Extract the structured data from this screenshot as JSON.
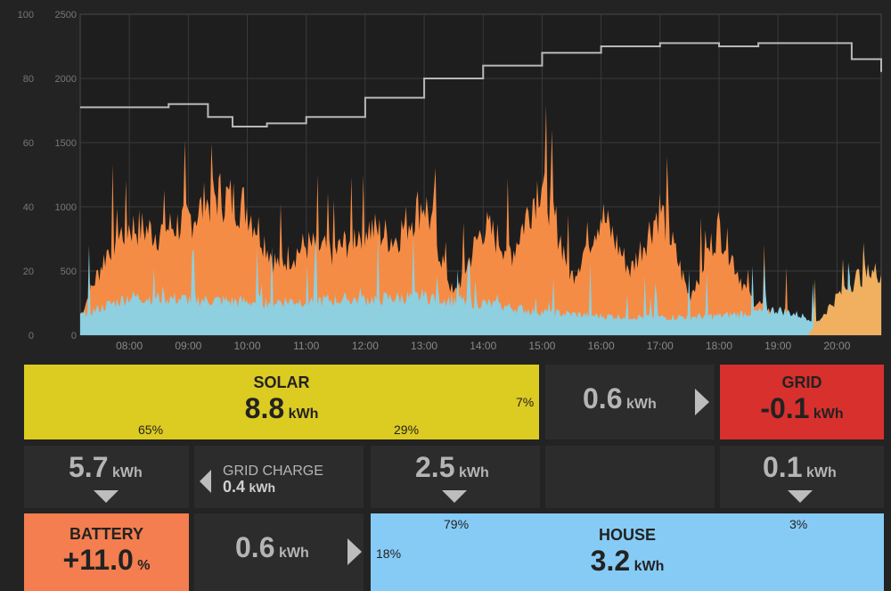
{
  "chart_data": {
    "type": "area",
    "x_ticks": [
      "08:00",
      "09:00",
      "10:00",
      "11:00",
      "12:00",
      "13:00",
      "14:00",
      "15:00",
      "16:00",
      "17:00",
      "18:00",
      "19:00",
      "20:00"
    ],
    "y_left_ticks": [
      "100",
      "80",
      "60",
      "40",
      "20",
      "0"
    ],
    "y_right_ticks": [
      "2500",
      "2000",
      "1500",
      "1000",
      "500",
      "0"
    ],
    "xlim": [
      "07:10",
      "20:45"
    ],
    "ylim_left": [
      0,
      100
    ],
    "ylim_right": [
      0,
      2500
    ],
    "colors": {
      "solar": "#f58c45",
      "house": "#8ecfe0",
      "battery_charge": "#f0b060",
      "line": "#b8b8b8",
      "grid": "#3a3a3a"
    },
    "series": [
      {
        "name": "solar",
        "times": [
          "07:10",
          "07:40",
          "08:00",
          "08:30",
          "09:00",
          "09:30",
          "10:00",
          "10:30",
          "11:00",
          "11:30",
          "12:00",
          "12:30",
          "13:00",
          "13:30",
          "14:00",
          "14:30",
          "15:00",
          "15:30",
          "16:00",
          "16:30",
          "17:00",
          "17:30",
          "18:00",
          "18:30",
          "19:00",
          "19:30",
          "20:00",
          "20:45"
        ],
        "values": [
          150,
          700,
          850,
          800,
          900,
          1100,
          1000,
          550,
          700,
          650,
          850,
          750,
          1050,
          300,
          850,
          650,
          1250,
          450,
          950,
          500,
          1000,
          300,
          850,
          300,
          150,
          50,
          0,
          0
        ]
      },
      {
        "name": "house",
        "times": [
          "07:10",
          "08:00",
          "09:00",
          "10:00",
          "11:00",
          "12:00",
          "13:00",
          "14:00",
          "15:00",
          "16:00",
          "17:00",
          "18:00",
          "19:00",
          "20:00",
          "20:45"
        ],
        "values": [
          150,
          300,
          280,
          260,
          270,
          280,
          300,
          250,
          180,
          150,
          140,
          150,
          200,
          80,
          60
        ]
      },
      {
        "name": "battery_charge",
        "times": [
          "19:30",
          "20:00",
          "20:20",
          "20:45"
        ],
        "values": [
          0,
          300,
          450,
          500
        ]
      },
      {
        "name": "battery_soc",
        "times": [
          "07:10",
          "08:05",
          "08:40",
          "09:20",
          "09:45",
          "10:20",
          "11:00",
          "12:00",
          "13:00",
          "14:00",
          "15:00",
          "16:00",
          "17:00",
          "18:00",
          "18:40",
          "19:30",
          "20:15",
          "20:45"
        ],
        "values": [
          71,
          71,
          72,
          68,
          65,
          66,
          68,
          74,
          80,
          84,
          88,
          90,
          91,
          90,
          91,
          91,
          86,
          82
        ]
      }
    ]
  },
  "panel": {
    "solar": {
      "label": "SOLAR",
      "value": "8.8",
      "unit": "kWh",
      "pct_battery": "65%",
      "pct_house": "29%",
      "pct_grid": "7%"
    },
    "solar_to_grid": {
      "value": "0.6",
      "unit": "kWh"
    },
    "grid": {
      "label": "GRID",
      "value": "-0.1",
      "unit": "kWh"
    },
    "solar_to_battery": {
      "value": "5.7",
      "unit": "kWh"
    },
    "grid_charge": {
      "label": "GRID CHARGE",
      "value": "0.4",
      "unit": "kWh"
    },
    "solar_to_house": {
      "value": "2.5",
      "unit": "kWh"
    },
    "grid_to_house": {
      "value": "0.1",
      "unit": "kWh"
    },
    "battery": {
      "label": "BATTERY",
      "value": "+11.0",
      "unit": "%"
    },
    "battery_to_house": {
      "value": "0.6",
      "unit": "kWh"
    },
    "house": {
      "label": "HOUSE",
      "value": "3.2",
      "unit": "kWh",
      "pct_solar": "79%",
      "pct_grid": "3%",
      "pct_battery": "18%"
    }
  }
}
